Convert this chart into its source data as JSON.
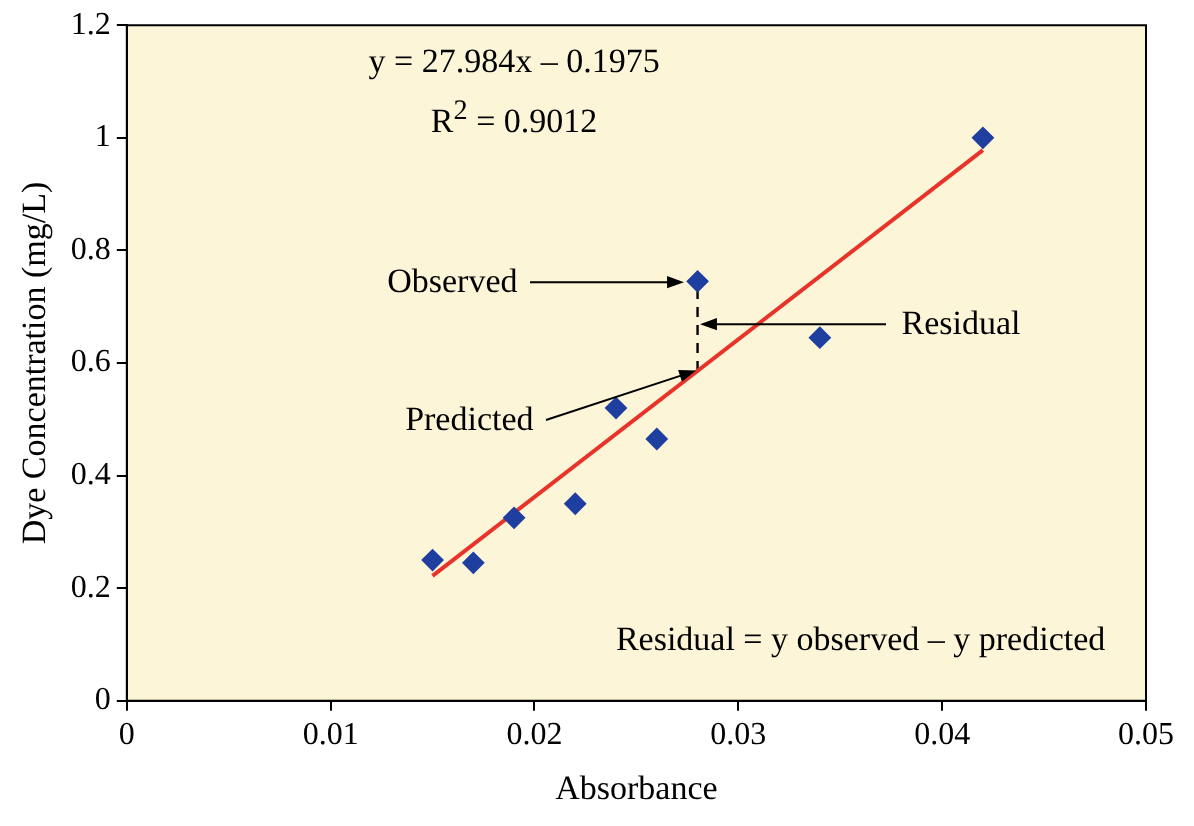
{
  "chart_data": {
    "type": "scatter",
    "xlabel": "Absorbance",
    "ylabel": "Dye Concentration (mg/L)",
    "series": [
      {
        "type": "scatter",
        "color": "#1f3fa0",
        "marker": "diamond",
        "x": [
          0.015,
          0.017,
          0.019,
          0.022,
          0.024,
          0.026,
          0.028,
          0.034,
          0.042
        ],
        "values": [
          0.25,
          0.245,
          0.325,
          0.35,
          0.52,
          0.465,
          0.745,
          0.645,
          1.0
        ]
      },
      {
        "type": "line",
        "color": "#e8332a",
        "marker": "none",
        "line_style": "solid",
        "x": [
          0.015,
          0.042
        ],
        "values": [
          0.222,
          0.978
        ]
      },
      {
        "type": "line",
        "color": "#000000",
        "marker": "none",
        "line_style": "dashed",
        "x": [
          0.028,
          0.028
        ],
        "values": [
          0.586,
          0.745
        ]
      }
    ],
    "xlim": [
      0,
      0.05
    ],
    "xticks": [
      0,
      0.01,
      0.02,
      0.03,
      0.04,
      0.05
    ],
    "ylim": [
      0,
      1.2
    ],
    "yticks": [
      0,
      0.2,
      0.4,
      0.6,
      0.8,
      1,
      1.2
    ],
    "grid": false,
    "legend": false,
    "annotations": [
      "y = 27.984x – 0.1975",
      "R$^{2}$ = 0.9012",
      "Observed",
      {
        "text": "Predicted",
        "x": 0.028,
        "y": 0.586
      },
      {
        "text": "Residual",
        "x": 0.028,
        "y": 0.67
      },
      "Residual = y observed – y predicted"
    ]
  }
}
